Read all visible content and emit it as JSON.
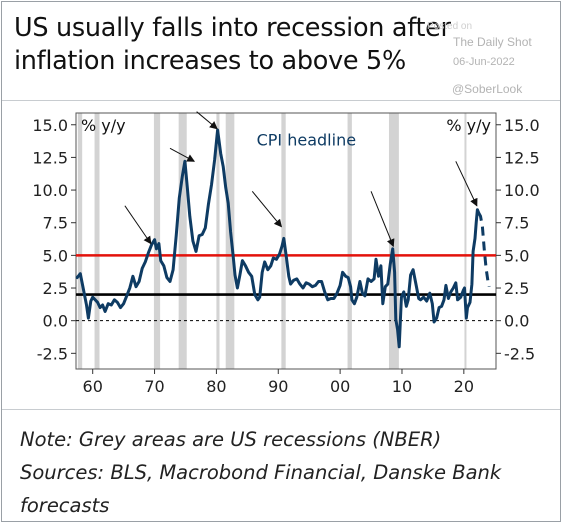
{
  "title_line1": "US usually falls into recession after",
  "title_line2": "inflation increases to above 5%",
  "watermark": {
    "ghost": "Posted on",
    "source": "The Daily Shot",
    "date": "06-Jun-2022",
    "handle": "@SoberLook"
  },
  "footer": {
    "note": "Note: Grey areas are US recessions (NBER)",
    "sources_line1": "Sources: BLS, Macrobond Financial, Danske Bank",
    "sources_line2": "forecasts"
  },
  "colors": {
    "series": "#0e3b63",
    "threshold_red": "#e3120b",
    "threshold_black": "#000000",
    "recession": "#d3d3d3"
  },
  "chart_data": {
    "type": "line",
    "y_unit_left": "% y/y",
    "y_unit_right": "% y/y",
    "series_label": "CPI headline",
    "ylim": [
      -3.7,
      15.9
    ],
    "xlim": [
      1957.3,
      2025.2
    ],
    "y_ticks": [
      15.0,
      12.5,
      10.0,
      7.5,
      5.0,
      2.5,
      0.0,
      -2.5
    ],
    "y_tick_labels": [
      "15.0",
      "12.5",
      "10.0",
      "7.5",
      "5.0",
      "2.5",
      "0.0",
      "-2.5"
    ],
    "x_ticks": [
      1960,
      1970,
      1980,
      1990,
      2000,
      2010,
      2020
    ],
    "x_tick_labels": [
      "60",
      "70",
      "80",
      "90",
      "00",
      "10",
      "20"
    ],
    "thresholds": [
      {
        "value": 5.0,
        "color": "red"
      },
      {
        "value": 2.0,
        "color": "black"
      },
      {
        "value": 0.0,
        "color": "black",
        "style": "dotted"
      }
    ],
    "recessions": [
      [
        1957.6,
        1958.3
      ],
      [
        1960.3,
        1961.1
      ],
      [
        1969.9,
        1970.9
      ],
      [
        1973.9,
        1975.2
      ],
      [
        1980.0,
        1980.5
      ],
      [
        1981.5,
        1982.9
      ],
      [
        1990.5,
        1991.2
      ],
      [
        2001.2,
        2001.9
      ],
      [
        2007.9,
        2009.5
      ],
      [
        2020.1,
        2020.4
      ]
    ],
    "series": [
      {
        "name": "CPI headline",
        "style": "solid",
        "points": [
          [
            1957.5,
            3.3
          ],
          [
            1958.0,
            3.6
          ],
          [
            1958.5,
            2.4
          ],
          [
            1959.0,
            1.2
          ],
          [
            1959.3,
            0.2
          ],
          [
            1959.7,
            1.5
          ],
          [
            1960.0,
            1.8
          ],
          [
            1960.4,
            1.6
          ],
          [
            1960.8,
            1.4
          ],
          [
            1961.2,
            1.0
          ],
          [
            1961.6,
            1.2
          ],
          [
            1962.0,
            0.7
          ],
          [
            1962.5,
            1.3
          ],
          [
            1963.0,
            1.2
          ],
          [
            1963.5,
            1.6
          ],
          [
            1964.0,
            1.4
          ],
          [
            1964.5,
            1.0
          ],
          [
            1965.0,
            1.3
          ],
          [
            1965.5,
            1.9
          ],
          [
            1966.0,
            2.5
          ],
          [
            1966.5,
            3.4
          ],
          [
            1967.0,
            2.6
          ],
          [
            1967.5,
            3.0
          ],
          [
            1968.0,
            4.0
          ],
          [
            1968.5,
            4.5
          ],
          [
            1969.0,
            5.2
          ],
          [
            1969.5,
            5.8
          ],
          [
            1970.0,
            6.2
          ],
          [
            1970.3,
            5.5
          ],
          [
            1970.7,
            5.9
          ],
          [
            1971.0,
            4.6
          ],
          [
            1971.5,
            4.2
          ],
          [
            1972.0,
            3.3
          ],
          [
            1972.5,
            3.0
          ],
          [
            1973.0,
            3.9
          ],
          [
            1973.5,
            6.5
          ],
          [
            1974.0,
            9.4
          ],
          [
            1974.5,
            11.1
          ],
          [
            1974.9,
            12.2
          ],
          [
            1975.3,
            10.2
          ],
          [
            1975.7,
            8.0
          ],
          [
            1976.2,
            6.1
          ],
          [
            1976.7,
            5.3
          ],
          [
            1977.2,
            6.5
          ],
          [
            1977.7,
            6.6
          ],
          [
            1978.2,
            7.1
          ],
          [
            1978.7,
            8.9
          ],
          [
            1979.2,
            10.4
          ],
          [
            1979.7,
            12.3
          ],
          [
            1980.2,
            14.6
          ],
          [
            1980.7,
            12.8
          ],
          [
            1981.1,
            11.8
          ],
          [
            1981.5,
            10.2
          ],
          [
            1981.9,
            9.0
          ],
          [
            1982.3,
            6.8
          ],
          [
            1982.7,
            5.0
          ],
          [
            1983.0,
            3.5
          ],
          [
            1983.4,
            2.5
          ],
          [
            1983.8,
            3.5
          ],
          [
            1984.2,
            4.6
          ],
          [
            1984.7,
            4.2
          ],
          [
            1985.2,
            3.7
          ],
          [
            1985.7,
            3.4
          ],
          [
            1986.2,
            2.0
          ],
          [
            1986.7,
            1.6
          ],
          [
            1987.0,
            1.8
          ],
          [
            1987.4,
            3.7
          ],
          [
            1987.8,
            4.5
          ],
          [
            1988.3,
            3.9
          ],
          [
            1988.8,
            4.2
          ],
          [
            1989.2,
            4.8
          ],
          [
            1989.7,
            4.7
          ],
          [
            1990.2,
            5.1
          ],
          [
            1990.6,
            5.7
          ],
          [
            1990.9,
            6.3
          ],
          [
            1991.3,
            4.9
          ],
          [
            1991.7,
            3.4
          ],
          [
            1992.0,
            2.8
          ],
          [
            1992.5,
            3.1
          ],
          [
            1993.0,
            3.2
          ],
          [
            1993.5,
            2.8
          ],
          [
            1994.0,
            2.5
          ],
          [
            1994.5,
            2.9
          ],
          [
            1995.0,
            2.8
          ],
          [
            1995.5,
            2.6
          ],
          [
            1996.0,
            2.7
          ],
          [
            1996.5,
            3.0
          ],
          [
            1997.0,
            3.0
          ],
          [
            1997.5,
            2.2
          ],
          [
            1998.0,
            1.6
          ],
          [
            1998.5,
            1.7
          ],
          [
            1999.0,
            1.7
          ],
          [
            1999.5,
            2.1
          ],
          [
            2000.0,
            2.7
          ],
          [
            2000.4,
            3.7
          ],
          [
            2000.9,
            3.4
          ],
          [
            2001.3,
            3.3
          ],
          [
            2001.7,
            2.6
          ],
          [
            2001.9,
            1.6
          ],
          [
            2002.3,
            1.3
          ],
          [
            2002.7,
            1.8
          ],
          [
            2003.2,
            3.0
          ],
          [
            2003.6,
            2.1
          ],
          [
            2004.0,
            1.9
          ],
          [
            2004.5,
            3.2
          ],
          [
            2005.0,
            3.0
          ],
          [
            2005.5,
            3.2
          ],
          [
            2005.8,
            4.7
          ],
          [
            2006.2,
            3.4
          ],
          [
            2006.6,
            4.2
          ],
          [
            2006.9,
            1.3
          ],
          [
            2007.3,
            2.6
          ],
          [
            2007.7,
            2.8
          ],
          [
            2008.1,
            4.3
          ],
          [
            2008.5,
            5.5
          ],
          [
            2008.8,
            3.7
          ],
          [
            2009.0,
            0.1
          ],
          [
            2009.3,
            -0.7
          ],
          [
            2009.55,
            -2.0
          ],
          [
            2009.9,
            1.8
          ],
          [
            2010.3,
            2.2
          ],
          [
            2010.7,
            1.1
          ],
          [
            2011.0,
            1.6
          ],
          [
            2011.4,
            3.5
          ],
          [
            2011.8,
            3.9
          ],
          [
            2012.3,
            2.7
          ],
          [
            2012.7,
            1.7
          ],
          [
            2013.0,
            1.6
          ],
          [
            2013.5,
            1.8
          ],
          [
            2014.0,
            1.5
          ],
          [
            2014.5,
            2.1
          ],
          [
            2014.9,
            1.3
          ],
          [
            2015.2,
            -0.1
          ],
          [
            2015.6,
            0.2
          ],
          [
            2016.0,
            1.0
          ],
          [
            2016.4,
            1.1
          ],
          [
            2016.8,
            1.6
          ],
          [
            2017.1,
            2.7
          ],
          [
            2017.5,
            1.7
          ],
          [
            2017.9,
            2.2
          ],
          [
            2018.3,
            2.5
          ],
          [
            2018.7,
            2.9
          ],
          [
            2019.0,
            1.6
          ],
          [
            2019.5,
            1.8
          ],
          [
            2019.9,
            2.3
          ],
          [
            2020.1,
            2.5
          ],
          [
            2020.4,
            0.2
          ],
          [
            2020.6,
            1.0
          ],
          [
            2021.0,
            1.4
          ],
          [
            2021.3,
            2.8
          ],
          [
            2021.5,
            5.3
          ],
          [
            2021.8,
            6.3
          ],
          [
            2022.0,
            7.5
          ],
          [
            2022.2,
            8.5
          ],
          [
            2022.35,
            8.3
          ]
        ]
      },
      {
        "name": "Danske Bank forecast",
        "style": "dashed",
        "points": [
          [
            2022.35,
            8.3
          ],
          [
            2022.7,
            8.0
          ],
          [
            2023.0,
            7.2
          ],
          [
            2023.3,
            5.5
          ],
          [
            2023.6,
            4.0
          ],
          [
            2023.9,
            3.0
          ],
          [
            2024.1,
            2.6
          ]
        ]
      }
    ],
    "arrows": [
      {
        "from": [
          1965.2,
          8.8
        ],
        "to": [
          1969.4,
          5.9
        ]
      },
      {
        "from": [
          1972.5,
          13.2
        ],
        "to": [
          1976.4,
          12.2
        ]
      },
      {
        "from": [
          1976.8,
          16.0
        ],
        "to": [
          1980.1,
          14.7
        ]
      },
      {
        "from": [
          1985.8,
          9.9
        ],
        "to": [
          1990.5,
          7.2
        ]
      },
      {
        "from": [
          2005.0,
          9.9
        ],
        "to": [
          2008.6,
          5.7
        ]
      },
      {
        "from": [
          2018.7,
          12.2
        ],
        "to": [
          2022.1,
          8.8
        ]
      }
    ]
  }
}
